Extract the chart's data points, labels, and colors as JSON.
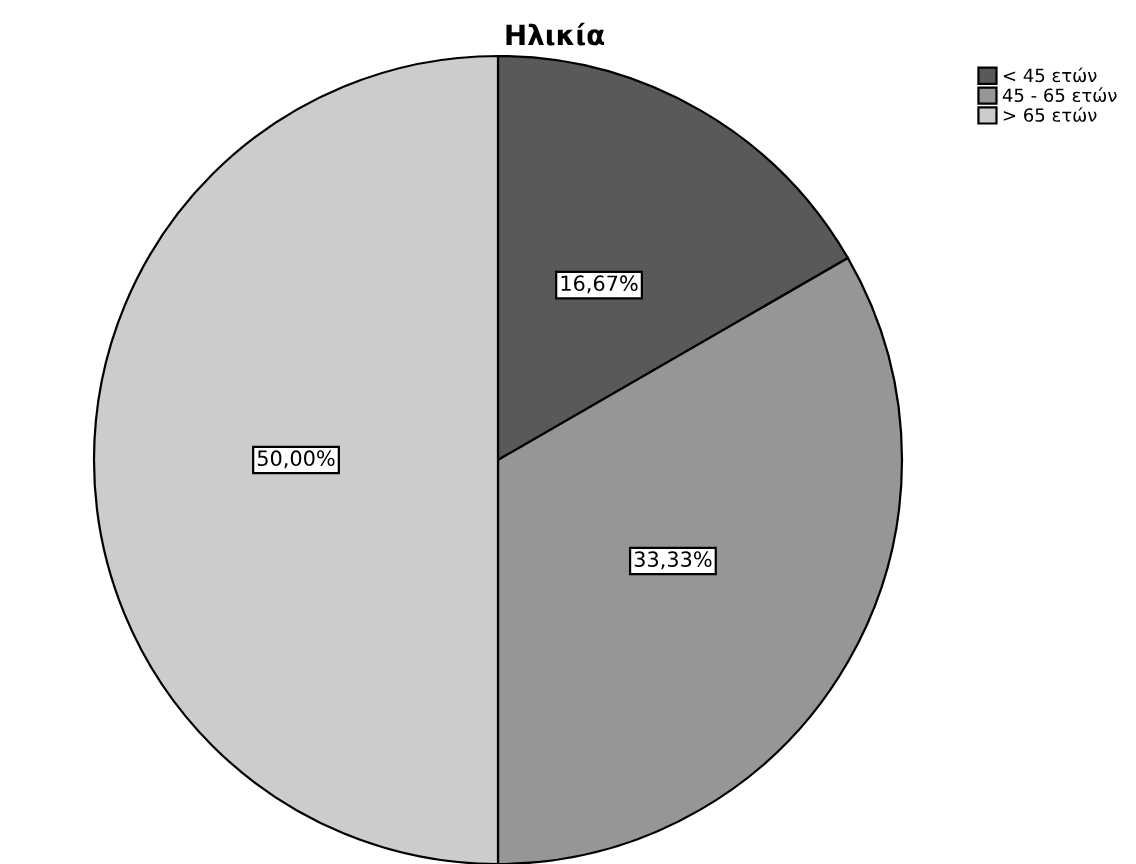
{
  "chart_data": {
    "type": "pie",
    "title": "Ηλικία",
    "categories": [
      "< 45 ετών",
      "45 - 65 ετών",
      "> 65 ετών"
    ],
    "values": [
      16.67,
      33.33,
      50.0
    ],
    "value_labels": [
      "16,67%",
      "33,33%",
      "50,00%"
    ],
    "colors": [
      "#595959",
      "#969696",
      "#cccccc"
    ],
    "legend": "top right"
  }
}
